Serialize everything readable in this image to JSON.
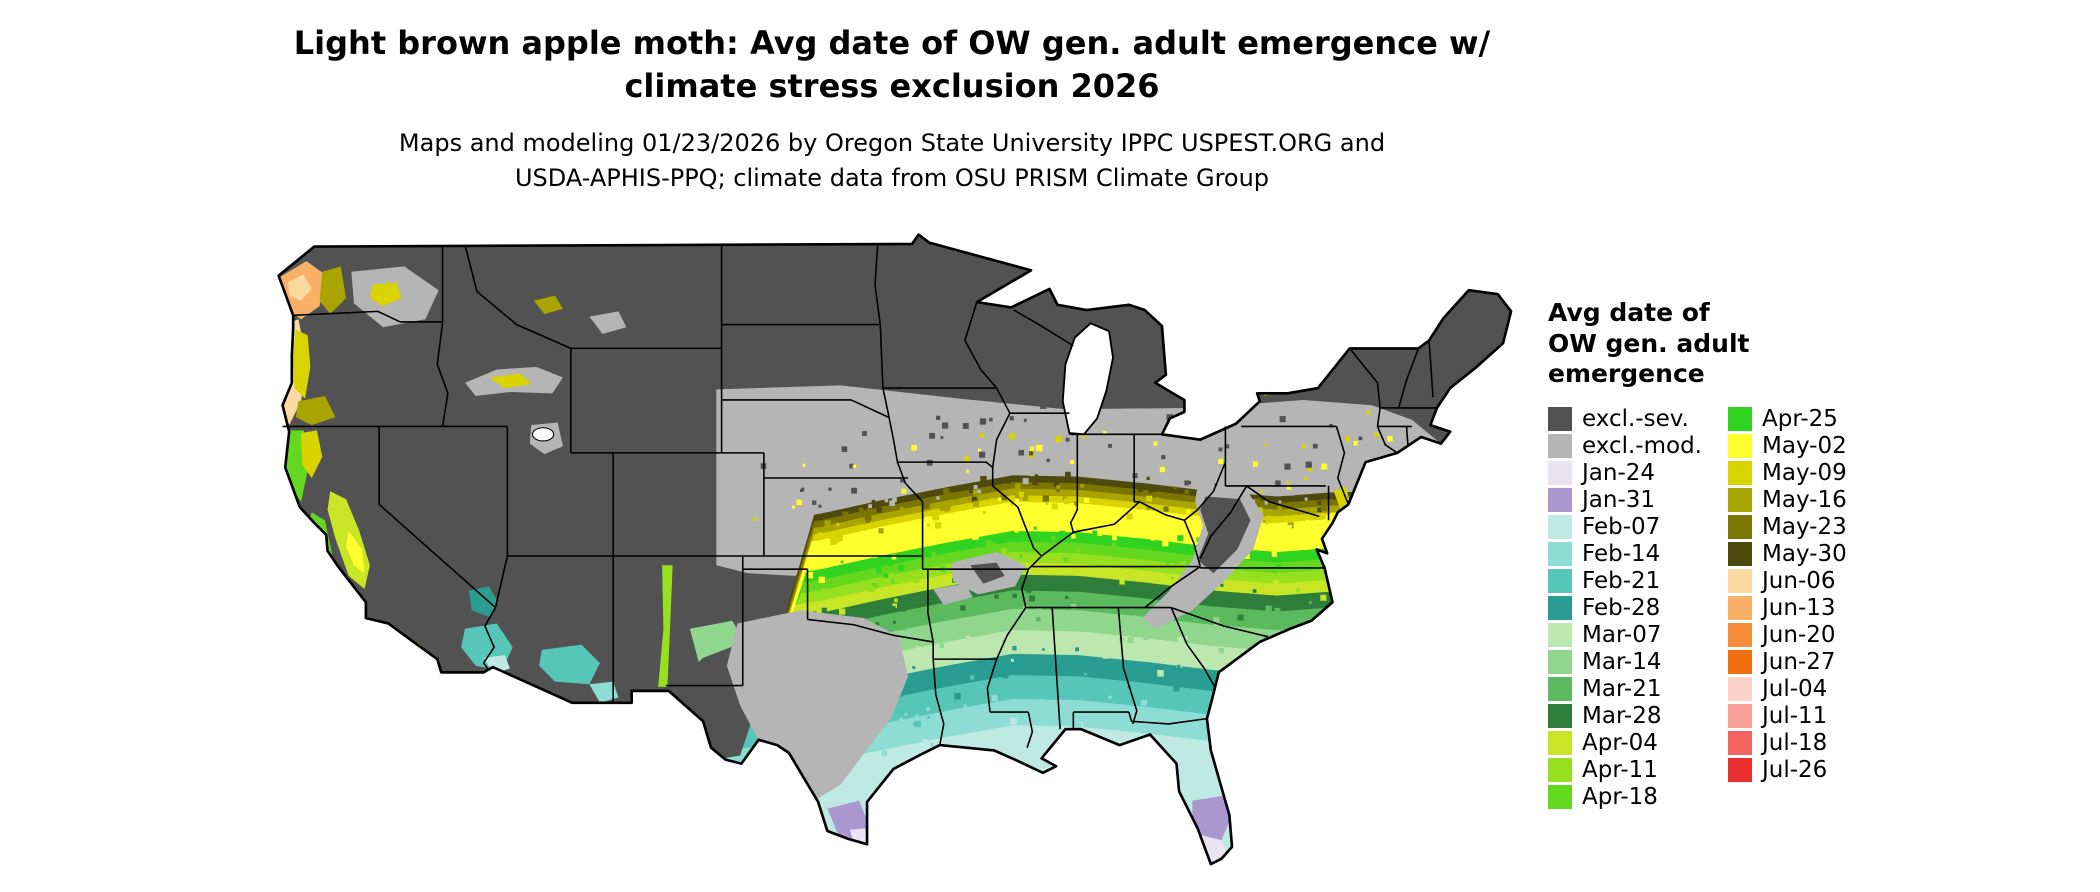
{
  "header": {
    "title_line1": "Light brown apple moth: Avg date of OW gen. adult emergence w/",
    "title_line2": "climate stress exclusion 2026",
    "subtitle_line1": "Maps and modeling 01/23/2026 by Oregon State University IPPC USPEST.ORG and",
    "subtitle_line2": "USDA-APHIS-PPQ; climate data from OSU PRISM Climate Group"
  },
  "legend": {
    "title_lines": [
      "Avg date of",
      "OW gen. adult",
      "emergence"
    ],
    "column1": [
      {
        "key": "excl_sev",
        "label": "excl.-sev.",
        "color": "#525252"
      },
      {
        "key": "excl_mod",
        "label": "excl.-mod.",
        "color": "#b5b5b5"
      },
      {
        "key": "jan24",
        "label": "Jan-24",
        "color": "#e9e3f2"
      },
      {
        "key": "jan31",
        "label": "Jan-31",
        "color": "#ab97d0"
      },
      {
        "key": "feb07",
        "label": "Feb-07",
        "color": "#bfeae4"
      },
      {
        "key": "feb14",
        "label": "Feb-14",
        "color": "#8eddd4"
      },
      {
        "key": "feb21",
        "label": "Feb-21",
        "color": "#56c6b9"
      },
      {
        "key": "feb28",
        "label": "Feb-28",
        "color": "#2a9d93"
      },
      {
        "key": "mar07",
        "label": "Mar-07",
        "color": "#bce8b0"
      },
      {
        "key": "mar14",
        "label": "Mar-14",
        "color": "#90d68d"
      },
      {
        "key": "mar21",
        "label": "Mar-21",
        "color": "#5bb95e"
      },
      {
        "key": "mar28",
        "label": "Mar-28",
        "color": "#2f7d3b"
      },
      {
        "key": "apr04",
        "label": "Apr-04",
        "color": "#c8e625"
      },
      {
        "key": "apr11",
        "label": "Apr-11",
        "color": "#97e01f"
      },
      {
        "key": "apr18",
        "label": "Apr-18",
        "color": "#64d81f"
      }
    ],
    "column2": [
      {
        "key": "apr25",
        "label": "Apr-25",
        "color": "#2fd320"
      },
      {
        "key": "may02",
        "label": "May-02",
        "color": "#ffff2e"
      },
      {
        "key": "may09",
        "label": "May-09",
        "color": "#d9d400"
      },
      {
        "key": "may16",
        "label": "May-16",
        "color": "#a9a400"
      },
      {
        "key": "may23",
        "label": "May-23",
        "color": "#7b7600"
      },
      {
        "key": "may30",
        "label": "May-30",
        "color": "#4e4a0e"
      },
      {
        "key": "jun06",
        "label": "Jun-06",
        "color": "#fbd9a0"
      },
      {
        "key": "jun13",
        "label": "Jun-13",
        "color": "#fab066"
      },
      {
        "key": "jun20",
        "label": "Jun-20",
        "color": "#f78d38"
      },
      {
        "key": "jun27",
        "label": "Jun-27",
        "color": "#f07010"
      },
      {
        "key": "jul04",
        "label": "Jul-04",
        "color": "#fbd2c8"
      },
      {
        "key": "jul11",
        "label": "Jul-11",
        "color": "#f8a097"
      },
      {
        "key": "jul18",
        "label": "Jul-18",
        "color": "#f2655e"
      },
      {
        "key": "jul26",
        "label": "Jul-26",
        "color": "#e92f2f"
      }
    ]
  }
}
